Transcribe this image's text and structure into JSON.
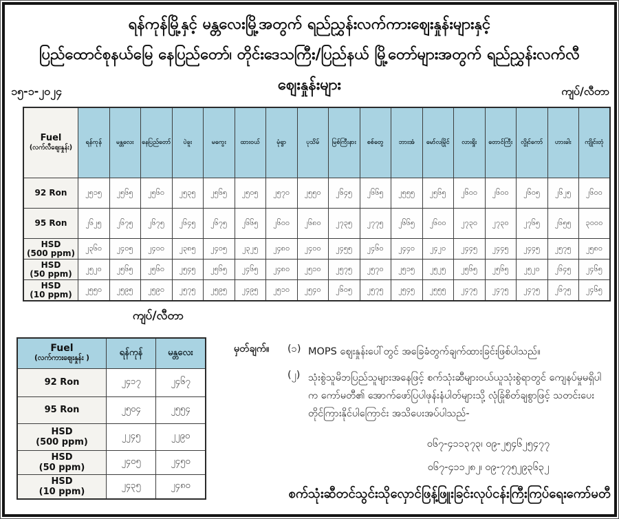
{
  "title_line1": "ရန်ကုန်မြို့နှင့် မန္တလေးမြို့အတွက် ရည်ညွှန်းလက်ကားဈေးနှုန်းများနှင့်",
  "title_line2": "ပြည်ထောင်စုနယ်မြေ နေပြည်တော်၊ တိုင်းဒေသကြီး/ပြည်နယ် မြို့တော်များအတွက် ရည်ညွှန်းလက်လီဈေးနှုန်းများ",
  "date": "၁၅-၁-၂၀၂၄",
  "unit_label": "ကျပ်/လီတာ",
  "unit_label_2": "ကျပ်/လီတာ",
  "retail_table": {
    "fuel_header": "Fuel",
    "fuel_subheader": "(လက်လီဈေးနှုန်း)",
    "cities": [
      "ရန်ကုန်",
      "မန္တလေး",
      "နေပြည်တော်",
      "ပဲခူး",
      "မကွေး",
      "ထားဝယ်",
      "မုံရွာ",
      "ပုသိမ်",
      "မြစ်ကြီးနား",
      "စစ်တွေ",
      "ဘားအံ",
      "မော်လမြိုင်",
      "လားရှိုး",
      "တောင်ကြီး",
      "လွိုင်ကော်",
      "ဟားခါး",
      "ကျိုင်းတုံ"
    ],
    "rows": [
      {
        "fuel_line1": "92 Ron",
        "fuel_line2": "",
        "tall": true,
        "values": [
          "၂၅၁၅",
          "၂၅၆၅",
          "၂၅၆၀",
          "၂၅၃၅",
          "၂၅၆၅",
          "၂၅၀၅",
          "၂၅၇၀",
          "၂၅၅၀",
          "၂၆၄၅",
          "၂၆၆၅",
          "၂၅၅၅",
          "၂၅၆၅",
          "၂၆၀၀",
          "၂၆၀၀",
          "၂၆၀၅",
          "၂၆၂၅",
          "၂၆၀၀"
        ]
      },
      {
        "fuel_line1": "95 Ron",
        "fuel_line2": "",
        "tall": true,
        "values": [
          "၂၆၂၅",
          "၂၆၇၅",
          "၂၆၇၅",
          "၂၆၄၅",
          "၂၆၇၅",
          "၂၆၆၅",
          "၂၆၀၀",
          "၂၆၈၀",
          "၂၇၃၅",
          "၂၇၇၅",
          "၂၆၆၅",
          "၂၆၀၀",
          "၂၇၃၀",
          "၂၇၃၀",
          "၂၇၆၅",
          "၂၆၅၅",
          "၃၀၀၀"
        ]
      },
      {
        "fuel_line1": "HSD",
        "fuel_line2": "(500 ppm)",
        "tall": false,
        "values": [
          "၂၃၆၀",
          "၂၄၀၅",
          "၂၄၀၀",
          "၂၃၈၅",
          "၂၄၀၅",
          "၂၃၂၅",
          "၂၄၈၀",
          "၂၄၀၀",
          "၂၄၅၅",
          "၂၄၆၀",
          "၂၄၄၀",
          "၂၄၂၀",
          "၂၄၄၅",
          "၂၄၄၅",
          "၂၄၄၅",
          "၂၅၇၅",
          "၂၅၈၀"
        ]
      },
      {
        "fuel_line1": "HSD",
        "fuel_line2": "(50 ppm)",
        "tall": false,
        "values": [
          "၂၅၂၀",
          "၂၅၆၅",
          "၂၅၆၀",
          "၂၅၄၅",
          "၂၅၆၅",
          "၂၄၆၅",
          "၂၄၈၀",
          "၂၅၁၀",
          "၂၅၇၅",
          "၂၅၇၀",
          "၂၅၁၅",
          "၂၅၂၅",
          "၂၅၆၅",
          "၂၅၆၅",
          "၂၅၂၀",
          "၂၆၄၅",
          "၂၄၆၅"
        ]
      },
      {
        "fuel_line1": "HSD",
        "fuel_line2": "(10 ppm)",
        "tall": false,
        "values": [
          "၂၅၅၀",
          "၂၅၉၅",
          "၂၅၉၀",
          "၂၅၇၅",
          "၂၅၉၅",
          "၂၄၉၅",
          "၂၅၁၀",
          "၂၅၄၀",
          "၂၆၀၅",
          "၂၅၇၅",
          "၂၅၄၅",
          "၂၅၅၅",
          "၂၄၇၅",
          "၂၄၇၅",
          "၂၄၇၅",
          "၂၆၇၅",
          "၂၄၆၅"
        ]
      }
    ]
  },
  "wholesale_table": {
    "fuel_header": "Fuel",
    "fuel_subheader": "(လက်ကားဈေးနှုန်း )",
    "cities": [
      "ရန်ကုန်",
      "မန္တလေး"
    ],
    "rows": [
      {
        "fuel_line1": "92 Ron",
        "fuel_line2": "",
        "values": [
          "၂၄၁၇",
          "၂၄၆၇"
        ]
      },
      {
        "fuel_line1": "95 Ron",
        "fuel_line2": "",
        "values": [
          "၂၅၀၄",
          "၂၅၅၄"
        ]
      },
      {
        "fuel_line1": "HSD",
        "fuel_line2": "(500 ppm)",
        "values": [
          "၂၂၄၅",
          "၂၂၉၀"
        ]
      },
      {
        "fuel_line1": "HSD",
        "fuel_line2": "(50 ppm)",
        "values": [
          "၂၄၀၅",
          "၂၄၅၀"
        ]
      },
      {
        "fuel_line1": "HSD",
        "fuel_line2": "(10 ppm)",
        "values": [
          "၂၄၃၅",
          "၂၄၈၀"
        ]
      }
    ]
  },
  "notes": {
    "label": "မှတ်ချက်။",
    "item1_no": "(၁)",
    "item1_text": "MOPS ဈေးနှုန်းပေါ်တွင် အခြေခံတွက်ချက်ထားခြင်းဖြစ်ပါသည်။",
    "item2_no": "(၂)",
    "item2_text": "သုံးစွဲသူမိဘပြည်သူများအနေဖြင့် စက်သုံးဆီများဝယ်ယူသုံးစွဲရာတွင် ကျေနပ်မှုမရှိပါက ကော်မတီ၏ အောက်ဖော်ပြပါဖုန်းနံပါတ်များသို့ လုံခြုံစိတ်ချစွာဖြင့် သတင်းပေး တိုင်ကြားနိုင်ပါကြောင်း အသိပေးအပ်ပါသည်-",
    "phone_line1": "၀၆၇-၄၁၁၃၇၃၊ ၀၉-၂၅၄၆၂၅၄၇၇",
    "phone_line2": "၀၆၇-၄၁၁၂၈၂၊ ၀၉-၇၇၅၂၉၃၆၃၂"
  },
  "footer_committee": "စက်သုံးဆီတင်သွင်းသိုလှောင်ဖြန့်ဖြူးခြင်းလုပ်ငန်းကြီးကြပ်ရေးကော်မတီ",
  "colors": {
    "header_blue": "#a9d3e2",
    "label_gray": "#f4f3ef",
    "border_dark": "#2a2a2a",
    "text_dark": "#111111"
  }
}
